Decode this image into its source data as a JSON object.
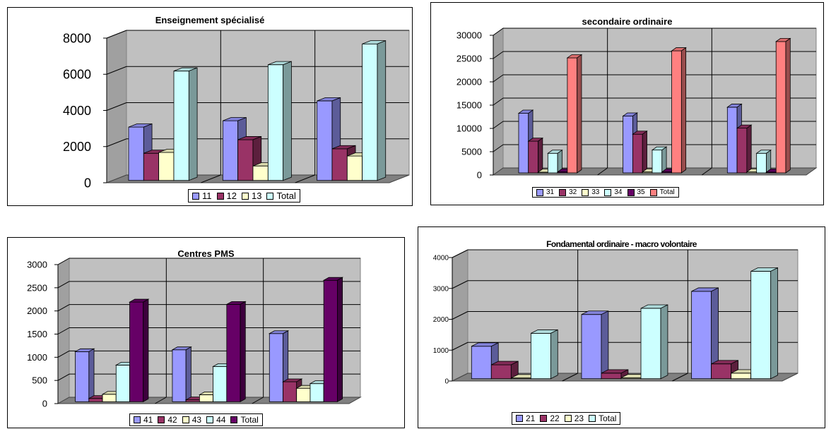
{
  "charts": [
    {
      "id": "chart1",
      "title": "Enseignement spécialisé",
      "chart_data": {
        "type": "bar",
        "style": "3d-clustered",
        "title": "Enseignement spécialisé",
        "ylim": [
          0,
          8000
        ],
        "yticks": [
          0,
          2000,
          4000,
          6000,
          8000
        ],
        "categories": [
          "",
          "",
          ""
        ],
        "series": [
          {
            "name": "11",
            "color": "#9999ff",
            "values": [
              2950,
              3300,
              4400
            ]
          },
          {
            "name": "12",
            "color": "#993366",
            "values": [
              1500,
              2250,
              1750
            ]
          },
          {
            "name": "13",
            "color": "#ffffcc",
            "values": [
              1550,
              800,
              1350
            ]
          },
          {
            "name": "Total",
            "color": "#ccffff",
            "values": [
              6050,
              6400,
              7550
            ]
          }
        ],
        "grid": true,
        "legend": "bottom"
      }
    },
    {
      "id": "chart2",
      "title": "secondaire ordinaire",
      "chart_data": {
        "type": "bar",
        "style": "3d-clustered",
        "title": "secondaire ordinaire",
        "ylim": [
          0,
          30000
        ],
        "yticks": [
          0,
          5000,
          10000,
          15000,
          20000,
          25000,
          30000
        ],
        "categories": [
          "",
          "",
          ""
        ],
        "series": [
          {
            "name": "31",
            "color": "#9999ff",
            "values": [
              12800,
              12200,
              14100
            ]
          },
          {
            "name": "32",
            "color": "#993366",
            "values": [
              6800,
              8300,
              9600
            ]
          },
          {
            "name": "33",
            "color": "#ffffcc",
            "values": [
              0,
              200,
              200
            ]
          },
          {
            "name": "34",
            "color": "#ccffff",
            "values": [
              4200,
              4900,
              4200
            ]
          },
          {
            "name": "35",
            "color": "#660066",
            "values": [
              200,
              200,
              0
            ]
          },
          {
            "name": "Total",
            "color": "#ff8080",
            "values": [
              24700,
              26200,
              28200
            ]
          }
        ],
        "grid": true,
        "legend": "bottom"
      }
    },
    {
      "id": "chart3",
      "title": "Centres PMS",
      "chart_data": {
        "type": "bar",
        "style": "3d-clustered",
        "title": "Centres PMS",
        "ylim": [
          0,
          3000
        ],
        "yticks": [
          0,
          500,
          1000,
          1500,
          2000,
          2500,
          3000
        ],
        "categories": [
          "",
          "",
          ""
        ],
        "series": [
          {
            "name": "41",
            "color": "#9999ff",
            "values": [
              1080,
              1120,
              1470
            ]
          },
          {
            "name": "42",
            "color": "#993366",
            "values": [
              70,
              40,
              430
            ]
          },
          {
            "name": "43",
            "color": "#ffffcc",
            "values": [
              160,
              150,
              290
            ]
          },
          {
            "name": "44",
            "color": "#ccffff",
            "values": [
              790,
              760,
              390
            ]
          },
          {
            "name": "Total",
            "color": "#660066",
            "values": [
              2150,
              2100,
              2620
            ]
          }
        ],
        "grid": true,
        "legend": "bottom"
      }
    },
    {
      "id": "chart4",
      "title": "Fondamental ordinaire - macro volontaire",
      "chart_data": {
        "type": "bar",
        "style": "3d-clustered",
        "title": "Fondamental ordinaire - macro volontaire",
        "ylim": [
          0,
          4000
        ],
        "yticks": [
          0,
          1000,
          2000,
          3000,
          4000
        ],
        "categories": [
          "",
          "",
          ""
        ],
        "series": [
          {
            "name": "21",
            "color": "#9999ff",
            "values": [
              1050,
              2080,
              2830
            ]
          },
          {
            "name": "22",
            "color": "#993366",
            "values": [
              450,
              180,
              480
            ]
          },
          {
            "name": "23",
            "color": "#ffffcc",
            "values": [
              0,
              30,
              180
            ]
          },
          {
            "name": "Total",
            "color": "#ccffff",
            "values": [
              1470,
              2280,
              3480
            ]
          }
        ],
        "grid": true,
        "legend": "bottom"
      }
    }
  ]
}
